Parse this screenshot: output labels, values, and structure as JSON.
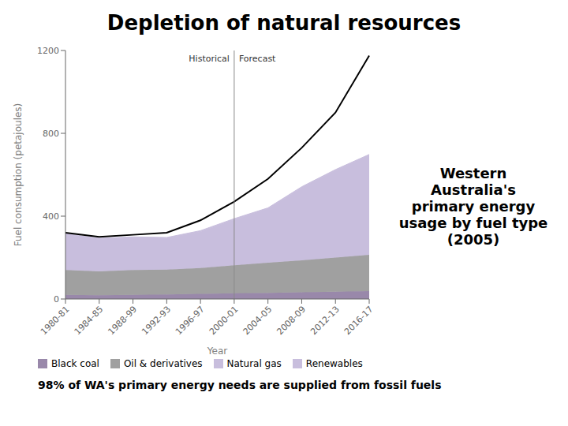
{
  "chart_data": {
    "type": "area",
    "title": "Depletion of natural resources",
    "subtitle": "Western\nAustralia's\nprimary energy\nusage by fuel type\n(2005)",
    "categories": [
      "1980-81",
      "1984-85",
      "1988-99",
      "1992-93",
      "1996-97",
      "2000-01",
      "2004-05",
      "2008-09",
      "2012-13",
      "2016-17"
    ],
    "series": [
      {
        "name": "Black coal",
        "type": "area",
        "color": "#9988AA",
        "values": [
          20,
          18,
          20,
          22,
          25,
          28,
          30,
          32,
          35,
          38
        ]
      },
      {
        "name": "Oil & derivatives",
        "type": "area",
        "color": "#A0A0A0",
        "values": [
          120,
          115,
          120,
          120,
          125,
          135,
          145,
          155,
          165,
          175
        ]
      },
      {
        "name": "Natural gas",
        "type": "area",
        "color": "#C8BEDD",
        "values": [
          170,
          155,
          155,
          150,
          175,
          220,
          260,
          350,
          420,
          480
        ]
      },
      {
        "name": "Renewables",
        "type": "area",
        "color": "#C8BEDD",
        "values": [
          5,
          5,
          5,
          5,
          5,
          5,
          5,
          5,
          5,
          5
        ]
      },
      {
        "type": "line",
        "color": "#000000",
        "values": [
          320,
          300,
          310,
          320,
          380,
          470,
          580,
          730,
          900,
          1175
        ]
      }
    ],
    "stacked": true,
    "xlabel": "Year",
    "ylabel": "Fuel consumption (petajoules)",
    "ylim": [
      0,
      1200
    ],
    "yticks": [
      0,
      400,
      800,
      1200
    ],
    "grid": false,
    "annotations": [
      {
        "text": "Historical",
        "x": "2000-01",
        "position": "left"
      },
      {
        "text": "Forecast",
        "x": "2000-01",
        "position": "right"
      },
      {
        "text": "98% of WA's primary energy needs are supplied from fossil fuels",
        "position": "bottom"
      }
    ]
  }
}
